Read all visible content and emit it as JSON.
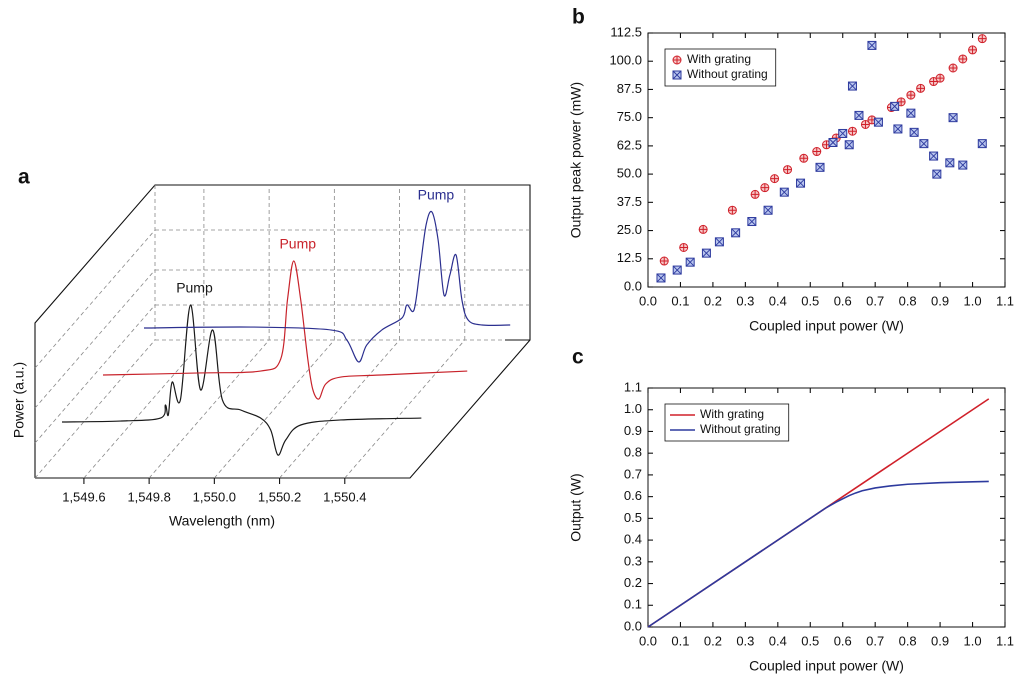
{
  "chart_data": [
    {
      "type": "waterfall",
      "label": "a",
      "xlabel": "Wavelength (nm)",
      "ylabel": "Power (a.u.)",
      "xlim": [
        1549.45,
        1550.6
      ],
      "xticks": [
        {
          "value": 1549.6,
          "label": "1,549.6"
        },
        {
          "value": 1549.8,
          "label": "1,549.8"
        },
        {
          "value": 1550.0,
          "label": "1,550.0"
        },
        {
          "value": 1550.2,
          "label": "1,550.2"
        },
        {
          "value": 1550.4,
          "label": "1,550.4"
        }
      ],
      "ylim": [
        -0.2,
        1.1
      ],
      "series": [
        {
          "annotation": "Pump",
          "color": "#1a1a1a",
          "x": [
            1549.45,
            1549.628,
            1549.752,
            1549.767,
            1549.776,
            1549.788,
            1549.813,
            1549.844,
            1549.875,
            1549.912,
            1549.942,
            1549.998,
            1550.059,
            1550.09,
            1550.112,
            1550.136,
            1550.182,
            1550.305,
            1550.552
          ],
          "values": [
            0.1,
            0.108,
            0.133,
            0.242,
            0.158,
            0.433,
            0.283,
            1.075,
            0.367,
            0.867,
            0.283,
            0.2,
            0.133,
            0.033,
            -0.175,
            -0.05,
            0.075,
            0.117,
            0.133
          ]
        },
        {
          "annotation": "Pump",
          "color": "#c8232b",
          "x": [
            1549.45,
            1549.748,
            1549.933,
            1549.995,
            1550.016,
            1550.035,
            1550.056,
            1550.078,
            1550.093,
            1550.112,
            1550.133,
            1550.179,
            1550.302,
            1550.567
          ],
          "values": [
            0.1,
            0.117,
            0.133,
            0.233,
            0.733,
            1.05,
            0.733,
            0.233,
            -0.017,
            -0.1,
            0.025,
            0.083,
            0.1,
            0.133
          ]
        },
        {
          "annotation": "Pump",
          "color": "#2b2f8f",
          "x": [
            1549.45,
            1549.779,
            1550.025,
            1550.072,
            1550.108,
            1550.133,
            1550.179,
            1550.241,
            1550.256,
            1550.278,
            1550.296,
            1550.315,
            1550.333,
            1550.352,
            1550.37,
            1550.388,
            1550.407,
            1550.425,
            1550.444,
            1550.487,
            1550.573
          ],
          "values": [
            0.1,
            0.108,
            0.083,
            0,
            -0.183,
            -0.042,
            0.083,
            0.183,
            0.292,
            0.25,
            0.583,
            0.958,
            1.067,
            0.833,
            0.375,
            0.542,
            0.708,
            0.333,
            0.167,
            0.125,
            0.125
          ]
        }
      ]
    },
    {
      "type": "scatter",
      "label": "b",
      "xlabel": "Coupled input power (W)",
      "ylabel": "Output peak power (mW)",
      "xlim": [
        0,
        1.1
      ],
      "xticks": [
        {
          "value": 0,
          "label": "0.0"
        },
        0.1,
        0.2,
        0.3,
        0.4,
        0.5,
        0.6,
        0.7,
        0.8,
        0.9,
        {
          "value": 1,
          "label": "1.0"
        },
        1.1
      ],
      "ylim": [
        0,
        112.5
      ],
      "yticks": [
        {
          "value": 0,
          "label": "0.0"
        },
        12.5,
        {
          "value": 25,
          "label": "25.0"
        },
        37.5,
        {
          "value": 50,
          "label": "50.0"
        },
        62.5,
        {
          "value": 75,
          "label": "75.0"
        },
        87.5,
        {
          "value": 100,
          "label": "100.0"
        },
        112.5
      ],
      "legend": "upper left",
      "series": [
        {
          "name": "With grating",
          "color": "#d0202a",
          "fill": "#f6c6c6",
          "x": [
            0.05,
            0.11,
            0.17,
            0.26,
            0.33,
            0.36,
            0.39,
            0.43,
            0.48,
            0.52,
            0.55,
            0.58,
            0.6,
            0.63,
            0.67,
            0.69,
            0.75,
            0.78,
            0.81,
            0.84,
            0.88,
            0.9,
            0.94,
            0.97,
            1.0,
            1.03
          ],
          "values": [
            11.5,
            17.5,
            25.5,
            34,
            41,
            44,
            48,
            52,
            57,
            60,
            63,
            66,
            68,
            69,
            72,
            74,
            79.5,
            82,
            85,
            88,
            91,
            92.5,
            97,
            101,
            105,
            110
          ]
        },
        {
          "name": "Without grating",
          "color": "#2d3a9e",
          "fill": "#b9c5ee",
          "x": [
            0.04,
            0.09,
            0.13,
            0.18,
            0.22,
            0.27,
            0.32,
            0.37,
            0.42,
            0.47,
            0.53,
            0.57,
            0.6,
            0.62,
            0.63,
            0.65,
            0.69,
            0.71,
            0.76,
            0.77,
            0.81,
            0.82,
            0.85,
            0.88,
            0.89,
            0.93,
            0.94,
            0.97,
            1.03
          ],
          "values": [
            4,
            7.5,
            11,
            15,
            20,
            24,
            29,
            34,
            42,
            46,
            53,
            64,
            68,
            63,
            89,
            76,
            107,
            73,
            80,
            70,
            77,
            68.5,
            63.5,
            58,
            50,
            55,
            75,
            54,
            63.5
          ]
        }
      ]
    },
    {
      "type": "line",
      "label": "c",
      "xlabel": "Coupled input power (W)",
      "ylabel": "Output (W)",
      "xlim": [
        0,
        1.1
      ],
      "xticks": [
        {
          "value": 0,
          "label": "0.0"
        },
        0.1,
        0.2,
        0.3,
        0.4,
        0.5,
        0.6,
        0.7,
        0.8,
        0.9,
        {
          "value": 1,
          "label": "1.0"
        },
        1.1
      ],
      "ylim": [
        0,
        1.1
      ],
      "yticks": [
        {
          "value": 0,
          "label": "0.0"
        },
        0.1,
        0.2,
        0.3,
        0.4,
        0.5,
        0.6,
        0.7,
        0.8,
        0.9,
        {
          "value": 1,
          "label": "1.0"
        },
        1.1
      ],
      "legend": "upper left",
      "series": [
        {
          "name": "With grating",
          "color": "#d0202a",
          "x": [
            0,
            1.05
          ],
          "values": [
            0,
            1.05
          ]
        },
        {
          "name": "Without grating",
          "color": "#2d3a9e",
          "x": [
            0,
            0.3,
            0.55,
            0.58,
            0.6,
            0.62,
            0.64,
            0.66,
            0.7,
            0.75,
            0.8,
            0.9,
            1.0,
            1.05
          ],
          "values": [
            0,
            0.3,
            0.55,
            0.575,
            0.59,
            0.605,
            0.617,
            0.627,
            0.64,
            0.65,
            0.657,
            0.664,
            0.668,
            0.67
          ]
        }
      ]
    }
  ]
}
